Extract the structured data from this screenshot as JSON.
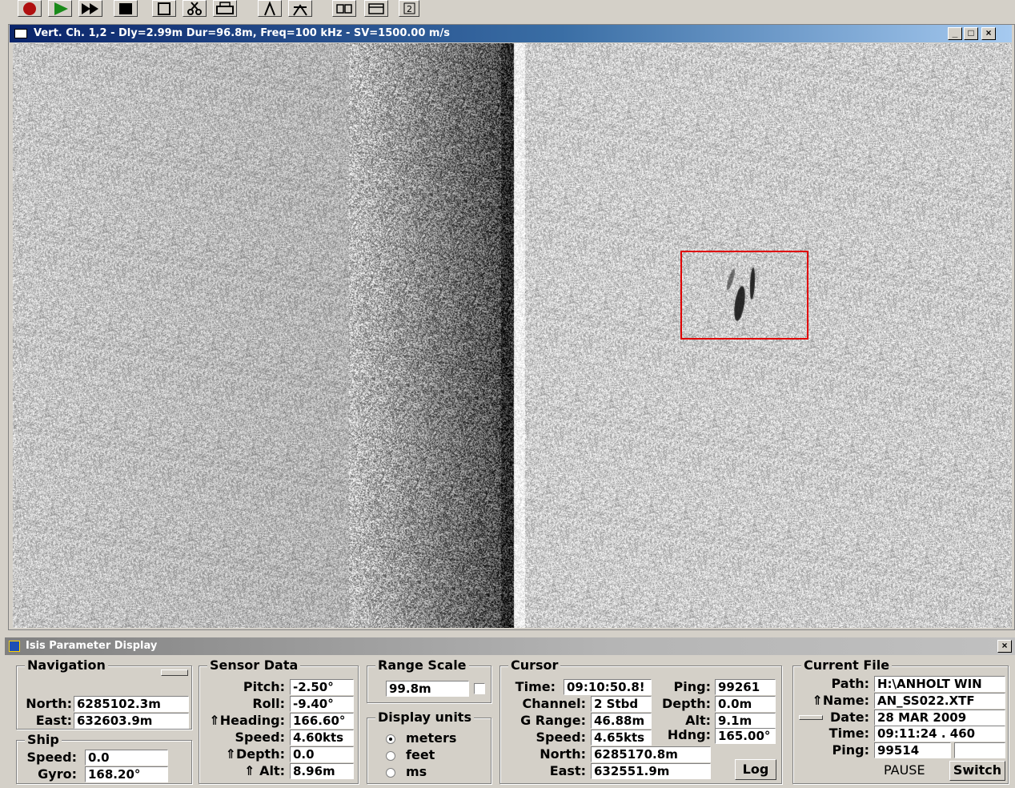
{
  "toolbar": {
    "buttons": [
      "record-icon",
      "play-icon",
      "fast-forward-icon",
      "stop-icon",
      "save-icon",
      "cut-icon",
      "print-icon",
      "tool-a-icon",
      "tool-b-icon",
      "tile-icon",
      "window-icon",
      "help-icon"
    ]
  },
  "sonar_window": {
    "title": "Vert. Ch. 1,2 - Dly=2.99m Dur=96.8m, Freq=100 kHz - SV=1500.00 m/s",
    "minimize": "_",
    "maximize": "□",
    "close": "×"
  },
  "param_panel": {
    "title": "Isis Parameter Display",
    "close": "×",
    "navigation": {
      "title": "Navigation",
      "north_label": "North:",
      "north": "6285102.3m",
      "east_label": "East:",
      "east": "632603.9m"
    },
    "ship": {
      "title": "Ship",
      "speed_label": "Speed:",
      "speed": "0.0",
      "gyro_label": "Gyro:",
      "gyro": "168.20°"
    },
    "sensor": {
      "title": "Sensor Data",
      "pitch_label": "Pitch:",
      "pitch": "-2.50°",
      "roll_label": "Roll:",
      "roll": "-9.40°",
      "heading_label": "⇑Heading:",
      "heading": "166.60°",
      "speed_label": "Speed:",
      "speed": "4.60kts",
      "depth_label": "⇑Depth:",
      "depth": "0.0",
      "alt_label": "⇑ Alt:",
      "alt": "8.96m"
    },
    "range_scale": {
      "title": "Range Scale",
      "value": "99.8m"
    },
    "display_units": {
      "title": "Display units",
      "options": [
        "meters",
        "feet",
        "ms"
      ],
      "selected": "meters"
    },
    "cursor": {
      "title": "Cursor",
      "time_label": "Time:",
      "time": "09:10:50.8!",
      "ping_label": "Ping:",
      "ping": "99261",
      "channel_label": "Channel:",
      "channel": "2 Stbd",
      "depth_label": "Depth:",
      "depth": "0.0m",
      "grange_label": "G Range:",
      "grange": "46.88m",
      "alt_label": "Alt:",
      "alt": "9.1m",
      "speed_label": "Speed:",
      "speed": "4.65kts",
      "hdng_label": "Hdng:",
      "hdng": "165.00°",
      "north_label": "North:",
      "north": "6285170.8m",
      "east_label": "East:",
      "east": "632551.9m",
      "log_button": "Log"
    },
    "current_file": {
      "title": "Current File",
      "path_label": "Path:",
      "path": "H:\\ANHOLT WIN",
      "name_label": "⇑Name:",
      "name": "AN_SS022.XTF",
      "date_label": "Date:",
      "date": "28 MAR 2009",
      "time_label": "Time:",
      "time": "09:11:24 . 460",
      "ping_label": "Ping:",
      "ping": "99514",
      "status": "PAUSE",
      "switch_button": "Switch"
    }
  }
}
